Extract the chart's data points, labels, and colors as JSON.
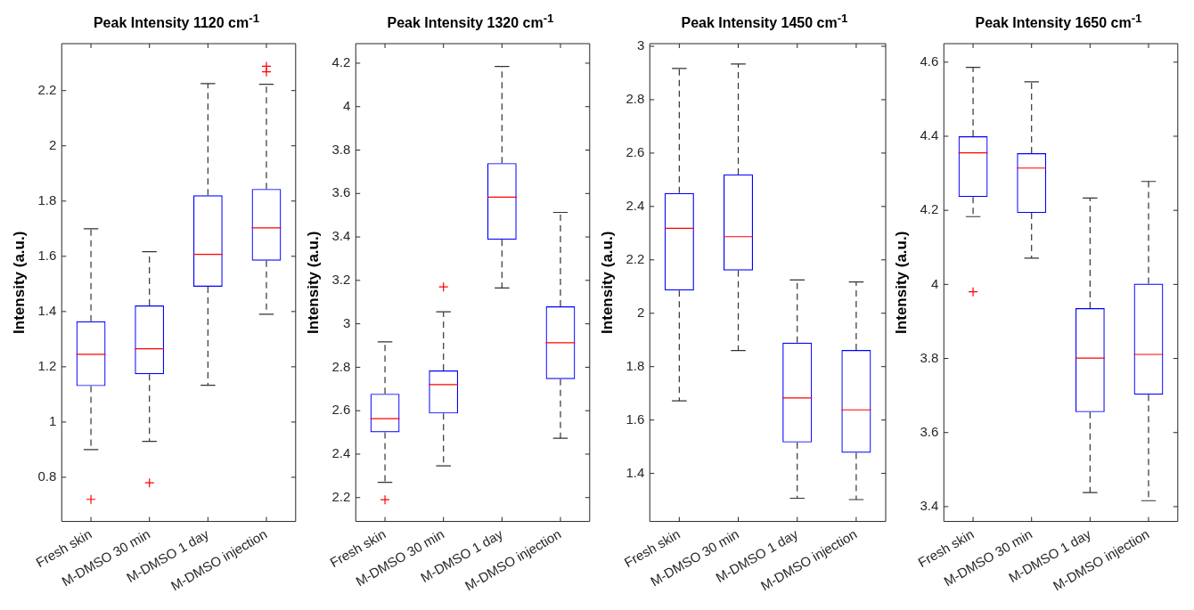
{
  "chart_data": [
    {
      "type": "box",
      "title": "Peak Intensity 1120 cm$^{-1}$",
      "ylabel": "Intensity (a.u.)",
      "categories": [
        "Fresh skin",
        "M-DMSO 30 min",
        "M-DMSO 1 day",
        "M-DMSO injection"
      ],
      "ylim": [
        0.64,
        2.37
      ],
      "yticks": [
        0.8,
        1,
        1.2,
        1.4,
        1.6,
        1.8,
        2,
        2.2
      ],
      "series": [
        {
          "color": "#0000ff",
          "boxes": [
            {
              "low": 0.9,
              "q1": 1.13,
              "median": 1.245,
              "q3": 1.365,
              "high": 1.7,
              "outliers": [
                0.72
              ]
            },
            {
              "low": 0.93,
              "q1": 1.173,
              "median": 1.265,
              "q3": 1.422,
              "high": 1.617,
              "outliers": [
                0.78
              ]
            },
            {
              "low": 1.133,
              "q1": 1.49,
              "median": 1.607,
              "q3": 1.821,
              "high": 2.225
            },
            {
              "low": 1.39,
              "q1": 1.584,
              "median": 1.703,
              "q3": 1.844,
              "high": 2.223,
              "outliers": [
                2.268,
                2.288
              ]
            }
          ]
        }
      ]
    },
    {
      "type": "box",
      "title": "Peak Intensity 1320 cm$^{-1}$",
      "ylabel": "Intensity (a.u.)",
      "categories": [
        "Fresh skin",
        "M-DMSO 30 min",
        "M-DMSO 1 day",
        "M-DMSO injection"
      ],
      "ylim": [
        2.09,
        4.29
      ],
      "yticks": [
        2.2,
        2.4,
        2.6,
        2.8,
        3,
        3.2,
        3.4,
        3.6,
        3.8,
        4,
        4.2
      ],
      "series": [
        {
          "color": "#0000ff",
          "boxes": [
            {
              "low": 2.27,
              "q1": 2.5,
              "median": 2.563,
              "q3": 2.678,
              "high": 2.917,
              "outliers": [
                2.19
              ]
            },
            {
              "low": 2.346,
              "q1": 2.587,
              "median": 2.72,
              "q3": 2.785,
              "high": 3.055,
              "outliers": [
                3.17
              ]
            },
            {
              "low": 3.165,
              "q1": 3.387,
              "median": 3.583,
              "q3": 3.74,
              "high": 4.185
            },
            {
              "low": 2.473,
              "q1": 2.745,
              "median": 2.913,
              "q3": 3.08,
              "high": 3.513
            }
          ]
        }
      ]
    },
    {
      "type": "box",
      "title": "Peak Intensity 1450 cm$^{-1}$",
      "ylabel": "Intensity (a.u.)",
      "categories": [
        "Fresh skin",
        "M-DMSO 30 min",
        "M-DMSO 1 day",
        "M-DMSO injection"
      ],
      "ylim": [
        1.22,
        3.01
      ],
      "yticks": [
        1.4,
        1.6,
        1.8,
        2,
        2.2,
        2.4,
        2.6,
        2.8,
        3
      ],
      "series": [
        {
          "color": "#0000ff",
          "boxes": [
            {
              "low": 1.672,
              "q1": 2.085,
              "median": 2.318,
              "q3": 2.45,
              "high": 2.917
            },
            {
              "low": 1.86,
              "q1": 2.16,
              "median": 2.287,
              "q3": 2.52,
              "high": 2.934
            },
            {
              "low": 1.307,
              "q1": 1.516,
              "median": 1.683,
              "q3": 1.89,
              "high": 2.125
            },
            {
              "low": 1.302,
              "q1": 1.477,
              "median": 1.638,
              "q3": 1.862,
              "high": 2.117
            }
          ]
        }
      ]
    },
    {
      "type": "box",
      "title": "Peak Intensity 1650 cm$^{-1}$",
      "ylabel": "Intensity (a.u.)",
      "categories": [
        "Fresh skin",
        "M-DMSO 30 min",
        "M-DMSO 1 day",
        "M-DMSO injection"
      ],
      "ylim": [
        3.36,
        4.65
      ],
      "yticks": [
        3.4,
        3.6,
        3.8,
        4,
        4.2,
        4.4,
        4.6
      ],
      "series": [
        {
          "color": "#0000ff",
          "boxes": [
            {
              "low": 4.183,
              "q1": 4.236,
              "median": 4.355,
              "q3": 4.4,
              "high": 4.586,
              "outliers": [
                3.98
              ]
            },
            {
              "low": 4.071,
              "q1": 4.193,
              "median": 4.314,
              "q3": 4.354,
              "high": 4.547
            },
            {
              "low": 3.438,
              "q1": 3.655,
              "median": 3.801,
              "q3": 3.936,
              "high": 4.233
            },
            {
              "low": 3.416,
              "q1": 3.702,
              "median": 3.811,
              "q3": 4.002,
              "high": 4.278
            }
          ]
        }
      ]
    }
  ]
}
